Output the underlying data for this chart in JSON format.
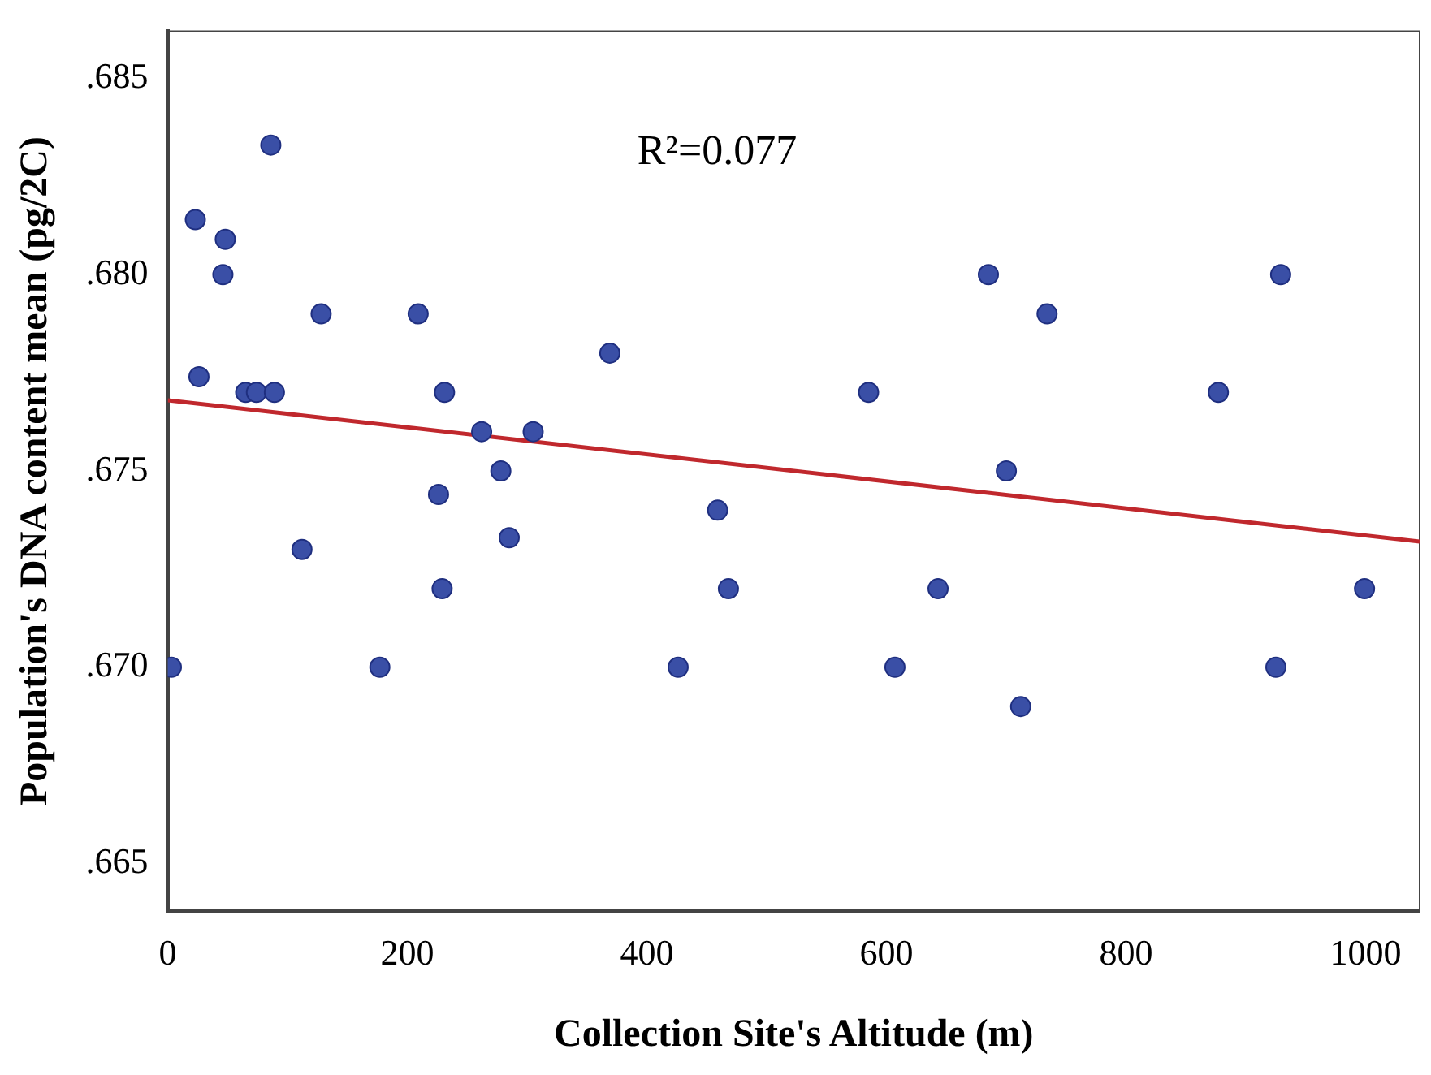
{
  "chart_data": {
    "type": "scatter",
    "xlabel": "Collection Site's Altitude (m)",
    "ylabel": "Population's DNA content mean (pg/2C)",
    "annotations": [
      "R²=0.077"
    ],
    "xlim": [
      0,
      1045
    ],
    "ylim": [
      0.6638,
      0.6862
    ],
    "xticks": [
      0,
      200,
      400,
      600,
      800,
      1000
    ],
    "yticks": [
      {
        "value": 0.665,
        "label": ".665"
      },
      {
        "value": 0.67,
        "label": ".670"
      },
      {
        "value": 0.675,
        "label": ".675"
      },
      {
        "value": 0.68,
        "label": ".680"
      },
      {
        "value": 0.685,
        "label": ".685"
      }
    ],
    "marker": "circle",
    "grid": false,
    "legend": false,
    "series": [
      {
        "color": "#3a4fa6",
        "x": [
          86,
          23,
          48,
          46,
          128,
          209,
          26,
          65,
          74,
          89,
          231,
          262,
          305,
          278,
          285,
          226,
          112,
          229,
          3,
          177,
          685,
          929,
          734,
          369,
          585,
          877,
          700,
          459,
          468,
          643,
          999,
          426,
          607,
          925,
          712
        ],
        "values": [
          0.6833,
          0.6814,
          0.6809,
          0.68,
          0.679,
          0.679,
          0.6774,
          0.677,
          0.677,
          0.677,
          0.677,
          0.676,
          0.676,
          0.675,
          0.6733,
          0.6744,
          0.673,
          0.672,
          0.67,
          0.67,
          0.68,
          0.68,
          0.679,
          0.678,
          0.677,
          0.677,
          0.675,
          0.674,
          0.672,
          0.672,
          0.672,
          0.67,
          0.67,
          0.67,
          0.669
        ]
      },
      {
        "type": "line",
        "marker": "none",
        "color": "#c0282d",
        "x": [
          0,
          1045
        ],
        "values": [
          0.6768,
          0.6732
        ]
      }
    ]
  }
}
